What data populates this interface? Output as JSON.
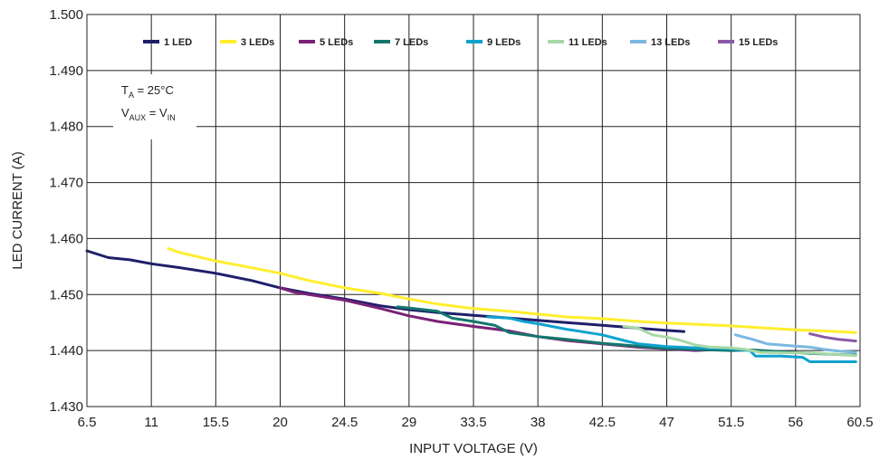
{
  "chart_data": {
    "type": "line",
    "xlabel": "INPUT VOLTAGE (V)",
    "ylabel": "LED CURRENT (A)",
    "xlim": [
      6.5,
      60.5
    ],
    "ylim": [
      1.43,
      1.5
    ],
    "x_ticks": [
      "6.5",
      "11",
      "15.5",
      "20",
      "24.5",
      "29",
      "33.5",
      "38",
      "42.5",
      "47",
      "51.5",
      "56",
      "60.5"
    ],
    "y_ticks": [
      "1.430",
      "1.440",
      "1.450",
      "1.460",
      "1.470",
      "1.480",
      "1.490",
      "1.500"
    ],
    "grid": true,
    "legend_position": "top",
    "annotation": {
      "line1_main": "T",
      "line1_sub": "A",
      "line1_rest": " = 25°C",
      "line2_main": "V",
      "line2_sub": "AUX",
      "line2_mid": " = V",
      "line2_sub2": "IN"
    },
    "series": [
      {
        "name": "1 LED",
        "color": "#1f1f6b",
        "points": [
          [
            6.5,
            1.4578
          ],
          [
            8,
            1.4566
          ],
          [
            9.5,
            1.4562
          ],
          [
            11,
            1.4555
          ],
          [
            13,
            1.4548
          ],
          [
            15.5,
            1.4538
          ],
          [
            18,
            1.4525
          ],
          [
            20,
            1.4512
          ],
          [
            22,
            1.4502
          ],
          [
            24.5,
            1.4492
          ],
          [
            27,
            1.448
          ],
          [
            29,
            1.4473
          ],
          [
            31,
            1.4468
          ],
          [
            33.5,
            1.4463
          ],
          [
            36,
            1.4458
          ],
          [
            38,
            1.4454
          ],
          [
            40,
            1.445
          ],
          [
            42.5,
            1.4445
          ],
          [
            45,
            1.444
          ],
          [
            47,
            1.4436
          ],
          [
            48.2,
            1.4434
          ]
        ]
      },
      {
        "name": "3 LEDs",
        "color": "#ffee2e",
        "points": [
          [
            12.2,
            1.4582
          ],
          [
            13,
            1.4575
          ],
          [
            15.5,
            1.456
          ],
          [
            18,
            1.4548
          ],
          [
            20,
            1.4538
          ],
          [
            22,
            1.4525
          ],
          [
            24.5,
            1.4512
          ],
          [
            27,
            1.4502
          ],
          [
            29,
            1.4492
          ],
          [
            31,
            1.4483
          ],
          [
            33.5,
            1.4475
          ],
          [
            36,
            1.447
          ],
          [
            38,
            1.4465
          ],
          [
            40,
            1.446
          ],
          [
            42.5,
            1.4457
          ],
          [
            45,
            1.4452
          ],
          [
            47,
            1.4449
          ],
          [
            49,
            1.4447
          ],
          [
            51.5,
            1.4444
          ],
          [
            54,
            1.444
          ],
          [
            56,
            1.4437
          ],
          [
            58,
            1.4435
          ],
          [
            60.2,
            1.4432
          ]
        ]
      },
      {
        "name": "5 LEDs",
        "color": "#7a2277",
        "points": [
          [
            20,
            1.4512
          ],
          [
            21,
            1.4504
          ],
          [
            22,
            1.45
          ],
          [
            24.5,
            1.449
          ],
          [
            27,
            1.4475
          ],
          [
            29,
            1.4462
          ],
          [
            31,
            1.4452
          ],
          [
            33.5,
            1.4443
          ],
          [
            36,
            1.4435
          ],
          [
            38,
            1.4425
          ],
          [
            40,
            1.4418
          ],
          [
            42.5,
            1.4412
          ],
          [
            45,
            1.4406
          ],
          [
            47,
            1.4403
          ],
          [
            49,
            1.44
          ],
          [
            51.5,
            1.4403
          ]
        ]
      },
      {
        "name": "7 LEDs",
        "color": "#13776d",
        "points": [
          [
            28.2,
            1.4478
          ],
          [
            29,
            1.4476
          ],
          [
            31,
            1.447
          ],
          [
            32,
            1.4458
          ],
          [
            33.5,
            1.4452
          ],
          [
            35,
            1.4445
          ],
          [
            36,
            1.4432
          ],
          [
            38,
            1.4425
          ],
          [
            40,
            1.442
          ],
          [
            42.5,
            1.4413
          ],
          [
            45,
            1.4408
          ],
          [
            47,
            1.4404
          ],
          [
            49,
            1.4402
          ],
          [
            51.5,
            1.44
          ],
          [
            53,
            1.4401
          ],
          [
            55,
            1.4398
          ],
          [
            57,
            1.4395
          ],
          [
            59,
            1.4393
          ],
          [
            60.2,
            1.4392
          ]
        ]
      },
      {
        "name": "9 LEDs",
        "color": "#0fa2cf",
        "points": [
          [
            34.5,
            1.446
          ],
          [
            36,
            1.4458
          ],
          [
            37,
            1.4452
          ],
          [
            38,
            1.4448
          ],
          [
            40,
            1.4438
          ],
          [
            42.5,
            1.4428
          ],
          [
            44,
            1.4418
          ],
          [
            45,
            1.4412
          ],
          [
            47,
            1.4407
          ],
          [
            49,
            1.4405
          ],
          [
            51.5,
            1.4403
          ],
          [
            52.8,
            1.44
          ],
          [
            53.2,
            1.439
          ],
          [
            55,
            1.439
          ],
          [
            56.5,
            1.4388
          ],
          [
            57,
            1.438
          ],
          [
            59,
            1.438
          ],
          [
            60.2,
            1.438
          ]
        ]
      },
      {
        "name": "11 LEDs",
        "color": "#a7d8a6",
        "points": [
          [
            44,
            1.4443
          ],
          [
            45,
            1.444
          ],
          [
            46,
            1.4428
          ],
          [
            47,
            1.4424
          ],
          [
            48,
            1.4418
          ],
          [
            49,
            1.441
          ],
          [
            50,
            1.4406
          ],
          [
            51.5,
            1.4405
          ],
          [
            52.5,
            1.4402
          ],
          [
            53.5,
            1.4397
          ],
          [
            55,
            1.4396
          ],
          [
            57,
            1.4396
          ],
          [
            59,
            1.4393
          ],
          [
            60.2,
            1.4391
          ]
        ]
      },
      {
        "name": "13 LEDs",
        "color": "#7ab8df",
        "points": [
          [
            51.8,
            1.4428
          ],
          [
            53,
            1.442
          ],
          [
            54,
            1.4412
          ],
          [
            55,
            1.441
          ],
          [
            56,
            1.4408
          ],
          [
            57,
            1.4406
          ],
          [
            58,
            1.4402
          ],
          [
            59,
            1.4399
          ],
          [
            60.2,
            1.4397
          ]
        ]
      },
      {
        "name": "15 LEDs",
        "color": "#8a5aa5",
        "points": [
          [
            57,
            1.443
          ],
          [
            58,
            1.4424
          ],
          [
            59,
            1.442
          ],
          [
            60.2,
            1.4417
          ]
        ]
      }
    ]
  }
}
